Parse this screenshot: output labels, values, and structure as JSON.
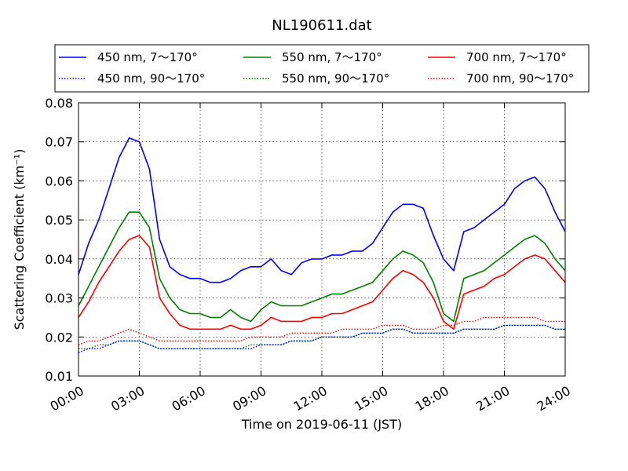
{
  "chart_data": {
    "type": "line",
    "title": "NL190611.dat",
    "xlabel": "Time on 2019-06-11 (JST)",
    "ylabel": "Scattering Coefficient (km⁻¹)",
    "xlim": [
      "00:00",
      "24:00"
    ],
    "ylim": [
      0.01,
      0.08
    ],
    "xticks": [
      "00:00",
      "03:00",
      "06:00",
      "09:00",
      "12:00",
      "15:00",
      "18:00",
      "21:00",
      "24:00"
    ],
    "yticks": [
      "0.01",
      "0.02",
      "0.03",
      "0.04",
      "0.05",
      "0.06",
      "0.07",
      "0.08"
    ],
    "grid": true,
    "legend_position": "top, outside plot",
    "x": [
      "00:00",
      "00:30",
      "01:00",
      "01:30",
      "02:00",
      "02:30",
      "03:00",
      "03:30",
      "04:00",
      "04:30",
      "05:00",
      "05:30",
      "06:00",
      "06:30",
      "07:00",
      "07:30",
      "08:00",
      "08:30",
      "09:00",
      "09:30",
      "10:00",
      "10:30",
      "11:00",
      "11:30",
      "12:00",
      "12:30",
      "13:00",
      "13:30",
      "14:00",
      "14:30",
      "15:00",
      "15:30",
      "16:00",
      "16:30",
      "17:00",
      "17:30",
      "18:00",
      "18:30",
      "19:00",
      "19:30",
      "20:00",
      "20:30",
      "21:00",
      "21:30",
      "22:00",
      "22:30",
      "23:00",
      "23:30",
      "24:00"
    ],
    "series": [
      {
        "name": "450 nm, 7～170°",
        "color": "#0000ff",
        "style": "solid",
        "values": [
          0.036,
          0.044,
          0.05,
          0.058,
          0.066,
          0.071,
          0.07,
          0.063,
          0.045,
          0.038,
          0.036,
          0.035,
          0.035,
          0.034,
          0.034,
          0.035,
          0.037,
          0.038,
          0.038,
          0.04,
          0.037,
          0.036,
          0.039,
          0.04,
          0.04,
          0.041,
          0.041,
          0.042,
          0.042,
          0.044,
          0.048,
          0.052,
          0.054,
          0.054,
          0.053,
          0.046,
          0.04,
          0.037,
          0.047,
          0.048,
          0.05,
          0.052,
          0.054,
          0.058,
          0.06,
          0.061,
          0.058,
          0.052,
          0.047
        ]
      },
      {
        "name": "450 nm, 90～170°",
        "color": "#0000ff",
        "style": "dotted",
        "values": [
          0.016,
          0.017,
          0.017,
          0.018,
          0.019,
          0.019,
          0.019,
          0.018,
          0.017,
          0.017,
          0.017,
          0.017,
          0.017,
          0.017,
          0.017,
          0.017,
          0.017,
          0.017,
          0.018,
          0.018,
          0.018,
          0.019,
          0.019,
          0.019,
          0.02,
          0.02,
          0.02,
          0.02,
          0.021,
          0.021,
          0.021,
          0.022,
          0.022,
          0.021,
          0.021,
          0.021,
          0.021,
          0.021,
          0.022,
          0.022,
          0.022,
          0.022,
          0.023,
          0.023,
          0.023,
          0.023,
          0.023,
          0.022,
          0.022
        ]
      },
      {
        "name": "550 nm, 7～170°",
        "color": "#008000",
        "style": "solid",
        "values": [
          0.028,
          0.033,
          0.038,
          0.043,
          0.048,
          0.052,
          0.052,
          0.048,
          0.035,
          0.03,
          0.027,
          0.026,
          0.026,
          0.025,
          0.025,
          0.027,
          0.025,
          0.024,
          0.027,
          0.029,
          0.028,
          0.028,
          0.028,
          0.029,
          0.03,
          0.031,
          0.031,
          0.032,
          0.033,
          0.034,
          0.037,
          0.04,
          0.042,
          0.041,
          0.039,
          0.034,
          0.026,
          0.024,
          0.035,
          0.036,
          0.037,
          0.039,
          0.041,
          0.043,
          0.045,
          0.046,
          0.044,
          0.04,
          0.037
        ]
      },
      {
        "name": "550 nm, 90～170°",
        "color": "#008000",
        "style": "dotted",
        "values": [
          0.017,
          0.017,
          0.018,
          0.018,
          0.019,
          0.019,
          0.019,
          0.018,
          0.017,
          0.017,
          0.017,
          0.017,
          0.017,
          0.017,
          0.017,
          0.017,
          0.017,
          0.018,
          0.018,
          0.018,
          0.018,
          0.019,
          0.019,
          0.019,
          0.02,
          0.02,
          0.02,
          0.02,
          0.021,
          0.021,
          0.021,
          0.022,
          0.022,
          0.021,
          0.021,
          0.021,
          0.021,
          0.021,
          0.022,
          0.022,
          0.022,
          0.022,
          0.023,
          0.023,
          0.023,
          0.023,
          0.023,
          0.022,
          0.022
        ]
      },
      {
        "name": "700 nm, 7～170°",
        "color": "#ff0000",
        "style": "solid",
        "values": [
          0.025,
          0.029,
          0.034,
          0.038,
          0.042,
          0.045,
          0.046,
          0.043,
          0.03,
          0.026,
          0.023,
          0.022,
          0.022,
          0.022,
          0.022,
          0.023,
          0.022,
          0.022,
          0.023,
          0.025,
          0.024,
          0.024,
          0.024,
          0.025,
          0.025,
          0.026,
          0.026,
          0.027,
          0.028,
          0.029,
          0.032,
          0.035,
          0.037,
          0.036,
          0.034,
          0.03,
          0.024,
          0.022,
          0.031,
          0.032,
          0.033,
          0.035,
          0.036,
          0.038,
          0.04,
          0.041,
          0.04,
          0.037,
          0.034
        ]
      },
      {
        "name": "700 nm, 90～170°",
        "color": "#ff0000",
        "style": "dotted",
        "values": [
          0.018,
          0.019,
          0.019,
          0.02,
          0.021,
          0.022,
          0.021,
          0.02,
          0.019,
          0.019,
          0.019,
          0.019,
          0.019,
          0.019,
          0.019,
          0.019,
          0.019,
          0.02,
          0.02,
          0.02,
          0.02,
          0.021,
          0.021,
          0.021,
          0.021,
          0.021,
          0.022,
          0.022,
          0.022,
          0.022,
          0.023,
          0.023,
          0.023,
          0.022,
          0.022,
          0.022,
          0.023,
          0.023,
          0.024,
          0.024,
          0.025,
          0.025,
          0.025,
          0.025,
          0.025,
          0.025,
          0.024,
          0.024,
          0.024
        ]
      }
    ]
  }
}
